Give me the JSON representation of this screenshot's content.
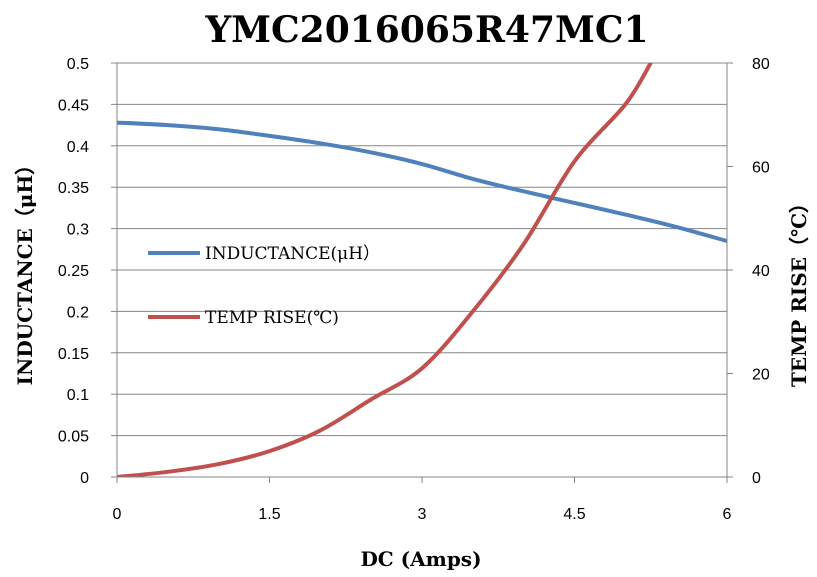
{
  "chart_data": {
    "type": "line",
    "title": "YMC2016065R47MC1",
    "xlabel": "DC (Amps)",
    "ylabel_left": "INDUCTANCE（μH）",
    "ylabel_right": "TEMP RISE（℃）",
    "xlim": [
      0,
      6
    ],
    "ylim_left": [
      0,
      0.5
    ],
    "ylim_right": [
      0,
      80
    ],
    "x_ticks": [
      "0",
      "1.5",
      "3",
      "4.5",
      "6"
    ],
    "x_tick_values": [
      0,
      1.5,
      3,
      4.5,
      6
    ],
    "y_left_ticks": [
      "0",
      "0.05",
      "0.1",
      "0.15",
      "0.2",
      "0.25",
      "0.3",
      "0.35",
      "0.4",
      "0.45",
      "0.5"
    ],
    "y_left_tick_values": [
      0,
      0.05,
      0.1,
      0.15,
      0.2,
      0.25,
      0.3,
      0.35,
      0.4,
      0.45,
      0.5
    ],
    "y_right_ticks": [
      "0",
      "20",
      "40",
      "60",
      "80"
    ],
    "y_right_tick_values": [
      0,
      20,
      40,
      60,
      80
    ],
    "grid": "horizontal",
    "legend_position": "left-middle",
    "series": [
      {
        "name": "INDUCTANCE(μH）",
        "axis": "left",
        "color": "#4f81bd",
        "x": [
          0,
          0.5,
          1.0,
          1.5,
          2.0,
          2.5,
          3.0,
          3.5,
          4.0,
          4.5,
          5.0,
          5.5,
          6.0
        ],
        "y": [
          0.428,
          0.425,
          0.42,
          0.412,
          0.403,
          0.392,
          0.378,
          0.36,
          0.345,
          0.331,
          0.317,
          0.302,
          0.285
        ]
      },
      {
        "name": "TEMP RISE(℃)",
        "axis": "right",
        "color": "#c0504d",
        "x": [
          0,
          0.5,
          1.0,
          1.5,
          2.0,
          2.5,
          3.0,
          3.5,
          4.0,
          4.5,
          5.0,
          5.25
        ],
        "y": [
          0,
          1,
          2.5,
          5,
          9,
          15,
          21,
          32,
          45,
          61,
          72,
          80
        ]
      }
    ]
  }
}
